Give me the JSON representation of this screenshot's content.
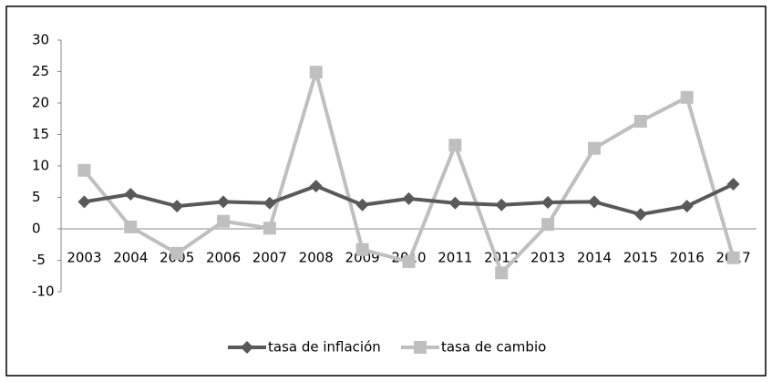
{
  "chart_data": {
    "type": "line",
    "categories": [
      "2003",
      "2004",
      "2005",
      "2006",
      "2007",
      "2008",
      "2009",
      "2010",
      "2011",
      "2012",
      "2013",
      "2014",
      "2015",
      "2016",
      "2017"
    ],
    "series": [
      {
        "name": "tasa de inflación",
        "color": "#595959",
        "marker": "diamond",
        "values": [
          4.3,
          5.5,
          3.6,
          4.3,
          4.1,
          6.8,
          3.8,
          4.8,
          4.1,
          3.8,
          4.2,
          4.3,
          2.3,
          3.6,
          7.1
        ]
      },
      {
        "name": "tasa de cambio",
        "color": "#bfbfbf",
        "marker": "square",
        "values": [
          9.3,
          0.3,
          -3.9,
          1.2,
          0.1,
          24.9,
          -3.3,
          -5.2,
          13.3,
          -7.0,
          0.7,
          12.8,
          17.1,
          20.9,
          -4.6
        ]
      }
    ],
    "ylim": [
      -10,
      30
    ],
    "yticks": [
      -10,
      -5,
      0,
      5,
      10,
      15,
      20,
      25,
      30
    ],
    "legend": "bottom"
  }
}
